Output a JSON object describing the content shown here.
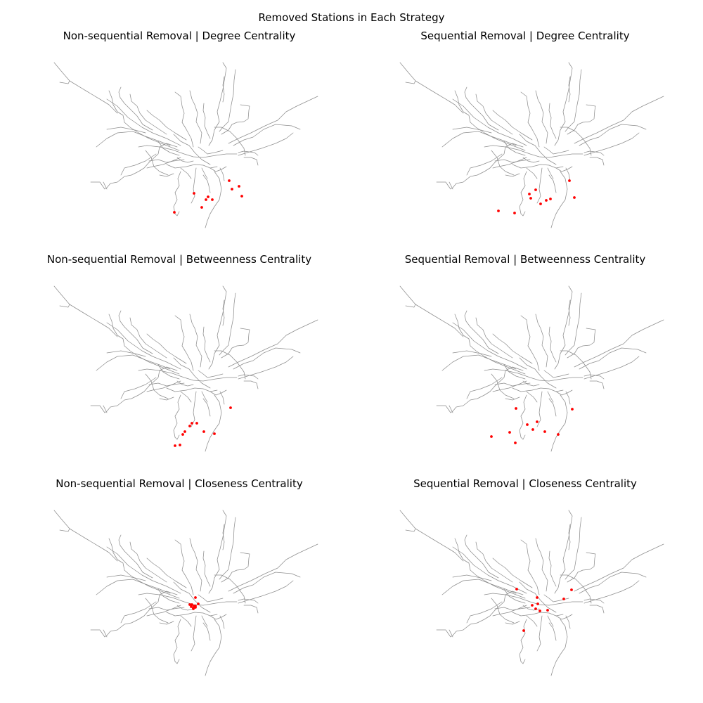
{
  "figure": {
    "title": "Removed Stations in Each Strategy",
    "marker_color": "#ff0000",
    "line_color": "#8e8e8e"
  },
  "panels": [
    {
      "title": "Non-sequential Removal | Degree Centrality",
      "removed": [
        [
          253,
          180
        ],
        [
          199,
          186
        ],
        [
          219,
          191
        ],
        [
          267,
          190
        ],
        [
          216,
          195
        ],
        [
          225,
          195
        ],
        [
          171,
          213
        ],
        [
          210,
          206
        ],
        [
          263,
          176
        ],
        [
          249,
          168
        ]
      ]
    },
    {
      "title": "Sequential Removal | Degree Centrality",
      "removed": [
        [
          241,
          168
        ],
        [
          193,
          181
        ],
        [
          184,
          187
        ],
        [
          186,
          193
        ],
        [
          208,
          196
        ],
        [
          214,
          194
        ],
        [
          200,
          201
        ],
        [
          163,
          214
        ],
        [
          140,
          211
        ],
        [
          248,
          192
        ]
      ]
    },
    {
      "title": "Non-sequential Removal | Betweenness Centrality",
      "removed": [
        [
          193,
          199
        ],
        [
          196,
          195
        ],
        [
          203,
          195
        ],
        [
          186,
          207
        ],
        [
          213,
          207
        ],
        [
          183,
          211
        ],
        [
          228,
          210
        ],
        [
          172,
          227
        ],
        [
          179,
          226
        ],
        [
          251,
          173
        ]
      ]
    },
    {
      "title": "Sequential Removal | Betweenness Centrality",
      "removed": [
        [
          165,
          174
        ],
        [
          195,
          193
        ],
        [
          181,
          197
        ],
        [
          189,
          204
        ],
        [
          206,
          207
        ],
        [
          156,
          208
        ],
        [
          130,
          214
        ],
        [
          164,
          223
        ],
        [
          225,
          211
        ],
        [
          245,
          175
        ]
      ]
    },
    {
      "title": "Non-sequential Removal | Closeness Centrality",
      "removed": [
        [
          201,
          124
        ],
        [
          196,
          134
        ],
        [
          198,
          139
        ],
        [
          205,
          133
        ],
        [
          201,
          136
        ],
        [
          195,
          137
        ],
        [
          193,
          134
        ],
        [
          198,
          140
        ],
        [
          201,
          138
        ],
        [
          199,
          136
        ]
      ]
    },
    {
      "title": "Sequential Removal | Closeness Centrality",
      "removed": [
        [
          166,
          112
        ],
        [
          195,
          124
        ],
        [
          196,
          133
        ],
        [
          188,
          135
        ],
        [
          193,
          140
        ],
        [
          199,
          143
        ],
        [
          210,
          142
        ],
        [
          233,
          126
        ],
        [
          244,
          113
        ],
        [
          176,
          171
        ]
      ]
    }
  ]
}
